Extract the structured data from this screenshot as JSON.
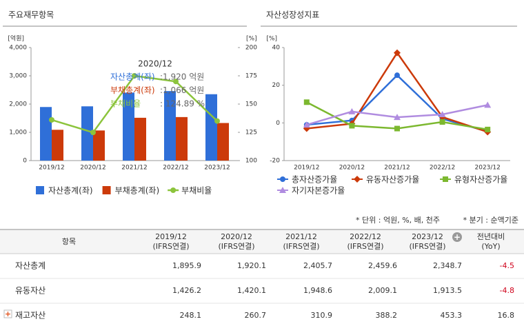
{
  "chart_data": [
    {
      "type": "bar",
      "title": "주요재무항목",
      "ylabel": "[억원]",
      "y2label": "[%]",
      "categories": [
        "2019/12",
        "2020/12",
        "2021/12",
        "2022/12",
        "2023/12"
      ],
      "series": [
        {
          "name": "자산총계(좌)",
          "color": "#2f6fd8",
          "values": [
            1895.9,
            1920.1,
            2405.7,
            2459.6,
            2348.7
          ]
        },
        {
          "name": "부채총계(좌)",
          "color": "#cc3a0a",
          "values": [
            1090,
            1066,
            1515,
            1540,
            1330
          ]
        },
        {
          "name": "부채비율",
          "color": "#8cc43c",
          "type": "line",
          "marker": "circle",
          "axis": "y2",
          "values": [
            136,
            124.89,
            175,
            170,
            135
          ]
        }
      ],
      "ylim": [
        0,
        4000
      ],
      "yticks": [
        0,
        {
          "value": 1000,
          "label": "1,000"
        },
        {
          "value": 2000,
          "label": "2,000"
        },
        {
          "value": 3000,
          "label": "3,000"
        },
        {
          "value": 4000,
          "label": "4,000"
        }
      ],
      "y2lim": [
        100,
        200
      ],
      "y2ticks": [
        100,
        125,
        150,
        175,
        200
      ],
      "grid": false,
      "tooltip": {
        "title": "2020/12",
        "rows": [
          {
            "label": "자산총계(좌)",
            "value": ":1,920 억원"
          },
          {
            "label": "부채총계(좌)",
            "value": ":1,066 억원"
          },
          {
            "label": "부채비율",
            "value": ": 124.89 %"
          }
        ]
      }
    },
    {
      "type": "line",
      "title": "자산성장성지표",
      "ylabel": "[%]",
      "categories": [
        "2019/12",
        "2020/12",
        "2021/12",
        "2022/12",
        "2023/12"
      ],
      "series": [
        {
          "name": "총자산증가율",
          "color": "#2f6fd8",
          "marker": "circle",
          "values": [
            -1,
            1.3,
            25.3,
            2.2,
            -4.5
          ]
        },
        {
          "name": "유동자산증가율",
          "color": "#cc3a0a",
          "marker": "diamond",
          "values": [
            -3,
            -0.4,
            37.2,
            3.1,
            -4.8
          ]
        },
        {
          "name": "유형자산증가율",
          "color": "#7cb82f",
          "marker": "square",
          "values": [
            11,
            -1.5,
            -3,
            0.5,
            -3.5
          ]
        },
        {
          "name": "자기자본증가율",
          "color": "#b08ce0",
          "marker": "triangle",
          "values": [
            -1,
            6,
            3,
            4.5,
            9.5
          ]
        }
      ],
      "ylim": [
        -20,
        40
      ],
      "yticks": [
        -20,
        0,
        20,
        40
      ],
      "grid": false
    }
  ],
  "table": {
    "notes": [
      "* 단위 : 억원, %, 배, 천주",
      "* 분기 : 순액기준"
    ],
    "header": [
      [
        "항목"
      ],
      [
        "2019/12",
        "(IFRS연결)"
      ],
      [
        "2020/12",
        "(IFRS연결)"
      ],
      [
        "2021/12",
        "(IFRS연결)"
      ],
      [
        "2022/12",
        "(IFRS연결)"
      ],
      [
        "2023/12",
        "(IFRS연결)"
      ],
      [
        "전년대비",
        "(YoY)"
      ]
    ],
    "rows": [
      [
        "자산총계",
        "1,895.9",
        "1,920.1",
        "2,405.7",
        "2,459.6",
        "2,348.7",
        "-4.5"
      ],
      [
        "유동자산",
        "1,426.2",
        "1,420.1",
        "1,948.6",
        "2,009.1",
        "1,913.5",
        "-4.8"
      ],
      [
        "재고자산",
        "248.1",
        "260.7",
        "310.9",
        "388.2",
        "453.3",
        "16.8"
      ]
    ]
  }
}
